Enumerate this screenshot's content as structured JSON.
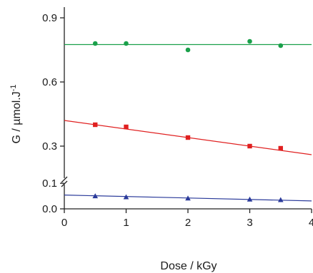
{
  "chart_data": {
    "type": "scatter",
    "xlabel": "Dose / kGy",
    "ylabel": "G / µmol.J",
    "ylabel_sup": "-1",
    "xlim": [
      0,
      4
    ],
    "x_ticks": [
      0,
      1,
      2,
      3,
      4
    ],
    "y_ticks_upper": [
      0.3,
      0.6,
      0.9
    ],
    "y_ticks_lower": [
      0.0,
      0.1
    ],
    "y_axis": {
      "broken": true,
      "lower_segment_range": [
        0,
        0.12
      ],
      "upper_segment_range": [
        0.15,
        0.95
      ]
    },
    "grid": false,
    "legend": "none",
    "series": [
      {
        "marker": "circle",
        "color": "#1aa04a",
        "x": [
          0.5,
          1,
          2,
          3,
          3.5
        ],
        "y": [
          0.78,
          0.78,
          0.75,
          0.79,
          0.77
        ],
        "fit": {
          "x": [
            0,
            4
          ],
          "y": [
            0.775,
            0.775
          ]
        }
      },
      {
        "marker": "square",
        "color": "#e02020",
        "x": [
          0.5,
          1,
          2,
          3,
          3.5
        ],
        "y": [
          0.4,
          0.39,
          0.34,
          0.3,
          0.29
        ],
        "fit": {
          "x": [
            0,
            4
          ],
          "y": [
            0.42,
            0.26
          ]
        }
      },
      {
        "marker": "triangle",
        "color": "#2a3a9a",
        "x": [
          0.5,
          1,
          2,
          3,
          3.5
        ],
        "y": [
          0.05,
          0.046,
          0.041,
          0.037,
          0.035
        ],
        "fit": {
          "x": [
            0,
            4
          ],
          "y": [
            0.054,
            0.031
          ]
        }
      }
    ]
  }
}
